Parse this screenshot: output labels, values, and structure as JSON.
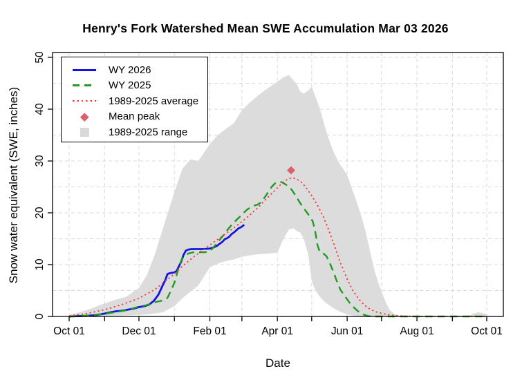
{
  "chart_data": {
    "type": "line",
    "title": "Henry's Fork Watershed Mean SWE Accumulation Mar 03 2026",
    "xlabel": "Date",
    "ylabel": "Snow water equivalent (SWE, inches)",
    "x_units": "days since Oct 01",
    "x_range_days": [
      0,
      365
    ],
    "x_tick_days": [
      0,
      31,
      61,
      92,
      123,
      151,
      182,
      212,
      243,
      273,
      304,
      335,
      365
    ],
    "x_tick_labels": [
      "Oct 01",
      "",
      "Dec 01",
      "",
      "Feb 01",
      "",
      "Apr 01",
      "",
      "Jun 01",
      "",
      "Aug 01",
      "",
      "Oct 01"
    ],
    "ylim": [
      0,
      50
    ],
    "y_ticks": [
      0,
      10,
      20,
      30,
      40,
      50
    ],
    "y_gridline_step": 5,
    "grid": true,
    "legend_position": "top-left",
    "colors": {
      "wy2026": "#1414e0",
      "wy2025": "#1f9b1f",
      "average": "#fc2d2d",
      "mean_peak": "#dc5f6e",
      "range_band": "#dcdcdc",
      "gridline": "#d9d9d9",
      "axis": "#000000"
    },
    "series": [
      {
        "name": "WY 2026",
        "type": "line",
        "style": "solid",
        "color": "#1414e0",
        "points": [
          [
            0,
            0
          ],
          [
            7,
            0.05
          ],
          [
            15,
            0.1
          ],
          [
            23,
            0.25
          ],
          [
            31,
            0.55
          ],
          [
            36,
            0.8
          ],
          [
            41,
            1.0
          ],
          [
            46,
            1.1
          ],
          [
            51,
            1.3
          ],
          [
            56,
            1.5
          ],
          [
            61,
            1.8
          ],
          [
            66,
            2.0
          ],
          [
            70,
            2.3
          ],
          [
            74,
            3.0
          ],
          [
            78,
            4.2
          ],
          [
            82,
            6.1
          ],
          [
            84,
            7.0
          ],
          [
            86,
            8.2
          ],
          [
            89,
            8.4
          ],
          [
            92,
            8.5
          ],
          [
            94,
            8.8
          ],
          [
            96,
            9.7
          ],
          [
            98,
            10.6
          ],
          [
            100,
            11.9
          ],
          [
            102,
            12.7
          ],
          [
            104,
            12.9
          ],
          [
            107,
            13.0
          ],
          [
            111,
            13.0
          ],
          [
            116,
            13.0
          ],
          [
            123,
            13.1
          ],
          [
            126,
            13.3
          ],
          [
            129,
            13.6
          ],
          [
            132,
            14.1
          ],
          [
            134,
            14.4
          ],
          [
            136,
            14.9
          ],
          [
            138,
            15.1
          ],
          [
            140,
            15.4
          ],
          [
            142,
            15.9
          ],
          [
            144,
            16.2
          ],
          [
            146,
            16.6
          ],
          [
            148,
            17.0
          ],
          [
            150,
            17.2
          ],
          [
            152,
            17.5
          ],
          [
            153,
            17.7
          ]
        ]
      },
      {
        "name": "WY 2025",
        "type": "line",
        "style": "dashed",
        "color": "#1f9b1f",
        "points": [
          [
            0,
            0
          ],
          [
            14,
            0.15
          ],
          [
            31,
            0.5
          ],
          [
            40,
            0.8
          ],
          [
            50,
            1.2
          ],
          [
            61,
            1.9
          ],
          [
            68,
            2.2
          ],
          [
            76,
            2.8
          ],
          [
            82,
            3.1
          ],
          [
            86,
            3.6
          ],
          [
            89,
            5.0
          ],
          [
            92,
            6.5
          ],
          [
            94,
            8.0
          ],
          [
            96,
            9.8
          ],
          [
            99,
            11.2
          ],
          [
            102,
            11.9
          ],
          [
            105,
            12.2
          ],
          [
            109,
            12.4
          ],
          [
            119,
            12.4
          ],
          [
            123,
            12.6
          ],
          [
            126,
            13.3
          ],
          [
            129,
            14.1
          ],
          [
            132,
            14.9
          ],
          [
            135,
            15.7
          ],
          [
            138,
            16.6
          ],
          [
            141,
            17.4
          ],
          [
            144,
            18.1
          ],
          [
            147,
            18.8
          ],
          [
            150,
            19.4
          ],
          [
            153,
            20.1
          ],
          [
            156,
            20.7
          ],
          [
            159,
            21.1
          ],
          [
            162,
            21.4
          ],
          [
            165,
            21.6
          ],
          [
            168,
            22.1
          ],
          [
            171,
            23.0
          ],
          [
            174,
            24.0
          ],
          [
            177,
            25.0
          ],
          [
            180,
            25.7
          ],
          [
            183,
            26.0
          ],
          [
            186,
            25.9
          ],
          [
            189,
            25.5
          ],
          [
            192,
            25.1
          ],
          [
            195,
            24.3
          ],
          [
            198,
            23.3
          ],
          [
            201,
            22.2
          ],
          [
            204,
            21.2
          ],
          [
            207,
            20.3
          ],
          [
            210,
            19.4
          ],
          [
            213,
            18.3
          ],
          [
            215,
            16.5
          ],
          [
            217,
            13.8
          ],
          [
            219,
            12.5
          ],
          [
            222,
            12.2
          ],
          [
            225,
            11.6
          ],
          [
            228,
            10.2
          ],
          [
            231,
            8.6
          ],
          [
            234,
            6.8
          ],
          [
            237,
            5.2
          ],
          [
            240,
            4.2
          ],
          [
            243,
            3.3
          ],
          [
            246,
            2.4
          ],
          [
            249,
            1.7
          ],
          [
            252,
            1.1
          ],
          [
            255,
            0.6
          ],
          [
            258,
            0.3
          ],
          [
            261,
            0.1
          ],
          [
            264,
            0
          ],
          [
            273,
            0
          ],
          [
            304,
            0
          ],
          [
            335,
            0
          ],
          [
            365,
            0
          ]
        ]
      },
      {
        "name": "1989-2025 average",
        "type": "line",
        "style": "dotted",
        "color": "#fc2d2d",
        "points": [
          [
            0,
            0.1
          ],
          [
            14,
            0.5
          ],
          [
            31,
            1.3
          ],
          [
            45,
            2.2
          ],
          [
            61,
            3.5
          ],
          [
            75,
            5.2
          ],
          [
            85,
            7.0
          ],
          [
            92,
            8.2
          ],
          [
            99,
            9.7
          ],
          [
            106,
            11.0
          ],
          [
            113,
            12.2
          ],
          [
            123,
            13.8
          ],
          [
            130,
            14.9
          ],
          [
            137,
            16.0
          ],
          [
            144,
            17.1
          ],
          [
            151,
            18.3
          ],
          [
            158,
            19.6
          ],
          [
            165,
            21.0
          ],
          [
            172,
            22.6
          ],
          [
            182,
            24.8
          ],
          [
            187,
            25.9
          ],
          [
            191,
            26.5
          ],
          [
            195,
            26.8
          ],
          [
            199,
            26.5
          ],
          [
            203,
            25.9
          ],
          [
            207,
            24.9
          ],
          [
            212,
            23.3
          ],
          [
            217,
            21.5
          ],
          [
            222,
            19.3
          ],
          [
            227,
            16.6
          ],
          [
            232,
            13.6
          ],
          [
            237,
            10.4
          ],
          [
            243,
            7.2
          ],
          [
            248,
            5.0
          ],
          [
            253,
            3.4
          ],
          [
            258,
            2.2
          ],
          [
            263,
            1.4
          ],
          [
            268,
            0.9
          ],
          [
            273,
            0.6
          ],
          [
            280,
            0.3
          ],
          [
            287,
            0.15
          ],
          [
            294,
            0.07
          ],
          [
            304,
            0.02
          ],
          [
            335,
            0
          ],
          [
            365,
            0
          ]
        ]
      },
      {
        "name": "Mean peak",
        "type": "point",
        "marker": "diamond",
        "color": "#dc5f6e",
        "points": [
          [
            194,
            28.2
          ]
        ]
      },
      {
        "name": "1989-2025 range",
        "type": "band",
        "color": "#dcdcdc",
        "points": [
          [
            0,
            0,
            0.3
          ],
          [
            9,
            0,
            0.8
          ],
          [
            19,
            0.05,
            1.5
          ],
          [
            31,
            0.1,
            2.5
          ],
          [
            40,
            0.15,
            3.2
          ],
          [
            50,
            0.2,
            3.8
          ],
          [
            61,
            0.3,
            5.5
          ],
          [
            68,
            0.4,
            8.0
          ],
          [
            75,
            0.6,
            12.0
          ],
          [
            82,
            0.8,
            17.0
          ],
          [
            92,
            2.0,
            24.0
          ],
          [
            99,
            3.5,
            28.5
          ],
          [
            106,
            4.8,
            30.3
          ],
          [
            113,
            6.0,
            30.0
          ],
          [
            123,
            9.5,
            33.3
          ],
          [
            130,
            10.2,
            35.0
          ],
          [
            137,
            10.7,
            36.2
          ],
          [
            144,
            11.0,
            37.3
          ],
          [
            151,
            11.5,
            39.8
          ],
          [
            158,
            11.8,
            41.3
          ],
          [
            165,
            12.0,
            42.6
          ],
          [
            172,
            12.1,
            43.8
          ],
          [
            182,
            12.3,
            45.3
          ],
          [
            187,
            14.8,
            46.1
          ],
          [
            192,
            16.8,
            46.6
          ],
          [
            196,
            17.0,
            45.6
          ],
          [
            199,
            16.5,
            44.8
          ],
          [
            202,
            16.2,
            43.4
          ],
          [
            205,
            15.0,
            43.0
          ],
          [
            209,
            12.0,
            43.6
          ],
          [
            212,
            6.9,
            44.3
          ],
          [
            215,
            5.2,
            42.6
          ],
          [
            219,
            3.8,
            40.2
          ],
          [
            223,
            2.9,
            37.0
          ],
          [
            227,
            2.2,
            34.2
          ],
          [
            231,
            1.6,
            31.8
          ],
          [
            236,
            1.0,
            29.6
          ],
          [
            243,
            0.4,
            27.3
          ],
          [
            247,
            0.2,
            24.8
          ],
          [
            251,
            0.1,
            22.3
          ],
          [
            255,
            0,
            19.6
          ],
          [
            259,
            0,
            16.5
          ],
          [
            263,
            0,
            12.6
          ],
          [
            267,
            0,
            8.8
          ],
          [
            271,
            0,
            6.0
          ],
          [
            273,
            0,
            4.8
          ],
          [
            277,
            0,
            2.6
          ],
          [
            280,
            0,
            1.3
          ],
          [
            284,
            0,
            0.5
          ],
          [
            288,
            0,
            0.1
          ],
          [
            291,
            0,
            0
          ],
          [
            335,
            0,
            0
          ],
          [
            350,
            0,
            0.2
          ],
          [
            354,
            0,
            0.6
          ],
          [
            358,
            0,
            0.8
          ],
          [
            362,
            0,
            0.6
          ],
          [
            365,
            0,
            0.4
          ]
        ]
      }
    ]
  }
}
